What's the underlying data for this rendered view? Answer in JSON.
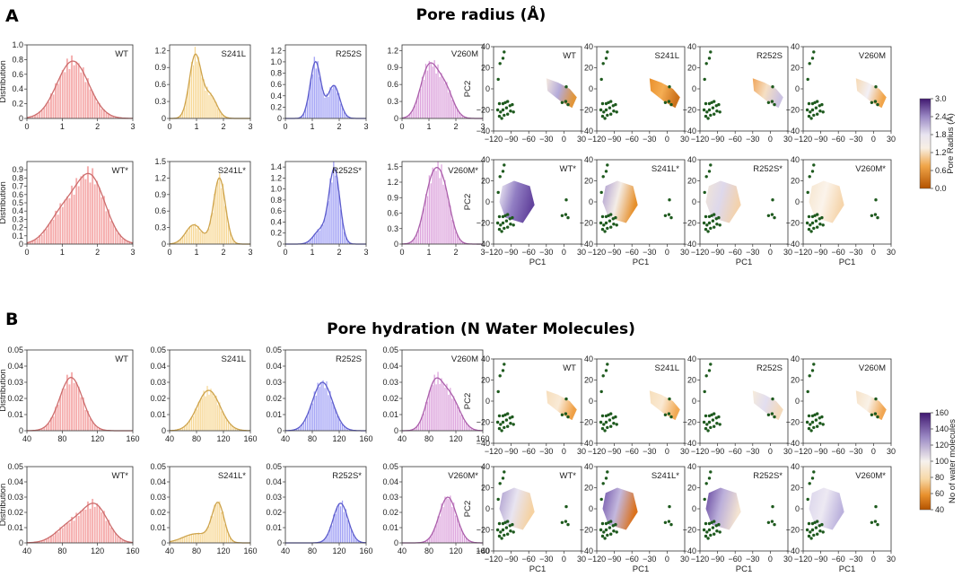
{
  "labels": {
    "panel_a": "A",
    "panel_b": "B",
    "title_a": "Pore radius (Å)",
    "title_b": "Pore hydration (N Water Molecules)",
    "distribution": "Distribution",
    "pc1": "PC1",
    "pc2": "PC2"
  },
  "colors": {
    "WT": "#f08080",
    "S241L": "#f2c15a",
    "R252S": "#6d6df0",
    "V260M": "#c970c9",
    "scatter_points": "#1e5a1e",
    "cmap_low": "#c05a00",
    "cmap_mid": "#f6f1ec",
    "cmap_high": "#4b1a78"
  },
  "chart_data": [
    {
      "panel": "A",
      "type": "bar",
      "kind": "histogram",
      "title": "Pore radius (Å)",
      "ylabel": "Distribution",
      "rows": [
        {
          "xlim": [
            0,
            3
          ],
          "xticks": [
            "0",
            "1",
            "2",
            "3"
          ],
          "subplots": [
            {
              "label": "WT",
              "variant": "WT",
              "ylim": [
                0,
                1.0
              ],
              "yticks": [
                "0",
                "0.2",
                "0.4",
                "0.6",
                "0.8",
                "1.0"
              ],
              "peaks": [
                [
                  1.3,
                  0.78,
                  0.45
                ]
              ]
            },
            {
              "label": "S241L",
              "variant": "S241L",
              "ylim": [
                0,
                1.3
              ],
              "yticks": [
                "0",
                "0.3",
                "0.6",
                "0.9",
                "1.2"
              ],
              "peaks": [
                [
                  0.95,
                  1.1,
                  0.22
                ],
                [
                  1.5,
                  0.4,
                  0.25
                ]
              ]
            },
            {
              "label": "R252S",
              "variant": "R252S",
              "ylim": [
                0,
                1.3
              ],
              "yticks": [
                "0",
                "0.2",
                "0.4",
                "0.6",
                "0.8",
                "1.0",
                "1.2"
              ],
              "peaks": [
                [
                  1.12,
                  1.0,
                  0.2
                ],
                [
                  1.8,
                  0.58,
                  0.22
                ]
              ]
            },
            {
              "label": "V260M",
              "variant": "V260M",
              "ylim": [
                0,
                1.3
              ],
              "yticks": [
                "0",
                "0.3",
                "0.6",
                "0.9",
                "1.2"
              ],
              "peaks": [
                [
                  1.0,
                  0.9,
                  0.32
                ],
                [
                  1.6,
                  0.5,
                  0.3
                ]
              ]
            }
          ]
        },
        {
          "xlim": [
            0,
            3
          ],
          "xticks": [
            "0",
            "1",
            "2",
            "3"
          ],
          "subplots": [
            {
              "label": "WT*",
              "variant": "WT",
              "ylim": [
                0,
                1.0
              ],
              "yticks": [
                "0",
                "0.1",
                "0.2",
                "0.3",
                "0.4",
                "0.5",
                "0.6",
                "0.7",
                "0.8",
                "0.9"
              ],
              "peaks": [
                [
                  1.8,
                  0.8,
                  0.42
                ],
                [
                  1.0,
                  0.35,
                  0.4
                ]
              ]
            },
            {
              "label": "S241L*",
              "variant": "S241L",
              "ylim": [
                0,
                1.5
              ],
              "yticks": [
                "0",
                "0.3",
                "0.6",
                "0.9",
                "1.2",
                "1.5"
              ],
              "peaks": [
                [
                  1.85,
                  1.2,
                  0.22
                ],
                [
                  0.9,
                  0.35,
                  0.3
                ]
              ]
            },
            {
              "label": "R252S*",
              "variant": "R252S",
              "ylim": [
                0,
                1.5
              ],
              "yticks": [
                "0",
                "0.2",
                "0.4",
                "0.6",
                "0.8",
                "1.0",
                "1.2",
                "1.4"
              ],
              "peaks": [
                [
                  1.82,
                  1.35,
                  0.2
                ],
                [
                  1.3,
                  0.25,
                  0.25
                ]
              ]
            },
            {
              "label": "V260M*",
              "variant": "V260M",
              "ylim": [
                0,
                1.6
              ],
              "yticks": [
                "0",
                "0.3",
                "0.6",
                "0.9",
                "1.2",
                "1.5"
              ],
              "peaks": [
                [
                  1.1,
                  1.1,
                  0.3
                ],
                [
                  1.55,
                  0.9,
                  0.28
                ]
              ]
            }
          ]
        }
      ]
    },
    {
      "panel": "B",
      "type": "bar",
      "kind": "histogram",
      "title": "Pore hydration (N Water Molecules)",
      "ylabel": "Distribution",
      "rows": [
        {
          "subplots": [
            {
              "label": "WT",
              "variant": "WT",
              "xlim": [
                40,
                160
              ],
              "xticks": [
                "40",
                "80",
                "120",
                "160"
              ],
              "ylim": [
                0,
                0.05
              ],
              "yticks": [
                "0",
                "0.01",
                "0.02",
                "0.03",
                "0.04",
                "0.05"
              ],
              "peaks": [
                [
                  90,
                  0.033,
                  13
                ]
              ]
            },
            {
              "label": "S241L",
              "variant": "S241L",
              "xlim": [
                40,
                160
              ],
              "xticks": [
                "40",
                "80",
                "120",
                "160"
              ],
              "ylim": [
                0,
                0.05
              ],
              "yticks": [
                "0",
                "0.01",
                "0.02",
                "0.03",
                "0.04",
                "0.05"
              ],
              "peaks": [
                [
                  98,
                  0.025,
                  17
                ]
              ]
            },
            {
              "label": "R252S",
              "variant": "R252S",
              "xlim": [
                40,
                160
              ],
              "xticks": [
                "40",
                "80",
                "120",
                "160"
              ],
              "ylim": [
                0,
                0.05
              ],
              "yticks": [
                "0",
                "0.01",
                "0.02",
                "0.03",
                "0.04",
                "0.05"
              ],
              "peaks": [
                [
                  95,
                  0.03,
                  15
                ]
              ]
            },
            {
              "label": "V260M",
              "variant": "V260M",
              "xlim": [
                40,
                160
              ],
              "xticks": [
                "40",
                "80",
                "120",
                "160"
              ],
              "ylim": [
                0,
                0.05
              ],
              "yticks": [
                "0",
                "0.01",
                "0.02",
                "0.03",
                "0.04",
                "0.05"
              ],
              "peaks": [
                [
                  88,
                  0.027,
                  12
                ],
                [
                  112,
                  0.02,
                  14
                ]
              ]
            }
          ]
        },
        {
          "subplots": [
            {
              "label": "WT*",
              "variant": "WT",
              "xlim": [
                40,
                160
              ],
              "xticks": [
                "40",
                "80",
                "120",
                "160"
              ],
              "ylim": [
                0,
                0.05
              ],
              "yticks": [
                "0",
                "0.01",
                "0.02",
                "0.03",
                "0.04",
                "0.05"
              ],
              "peaks": [
                [
                  118,
                  0.023,
                  14
                ],
                [
                  90,
                  0.012,
                  16
                ]
              ]
            },
            {
              "label": "S241L*",
              "variant": "S241L",
              "xlim": [
                40,
                160
              ],
              "xticks": [
                "40",
                "80",
                "120",
                "160"
              ],
              "ylim": [
                0,
                0.05
              ],
              "yticks": [
                "0",
                "0.01",
                "0.02",
                "0.03",
                "0.04",
                "0.05"
              ],
              "peaks": [
                [
                  112,
                  0.025,
                  9
                ],
                [
                  80,
                  0.006,
                  20
                ]
              ]
            },
            {
              "label": "R252S*",
              "variant": "R252S",
              "xlim": [
                40,
                160
              ],
              "xticks": [
                "40",
                "80",
                "120",
                "160"
              ],
              "ylim": [
                0,
                0.05
              ],
              "yticks": [
                "0",
                "0.01",
                "0.02",
                "0.03",
                "0.04",
                "0.05"
              ],
              "peaks": [
                [
                  122,
                  0.026,
                  11
                ]
              ]
            },
            {
              "label": "V260M*",
              "variant": "V260M",
              "xlim": [
                40,
                160
              ],
              "xticks": [
                "40",
                "80",
                "120",
                "160"
              ],
              "ylim": [
                0,
                0.05
              ],
              "yticks": [
                "0",
                "0.01",
                "0.02",
                "0.03",
                "0.04",
                "0.05"
              ],
              "peaks": [
                [
                  108,
                  0.03,
                  13
                ]
              ]
            }
          ]
        }
      ]
    },
    {
      "panel": "A",
      "type": "scatter",
      "kind": "pca",
      "xlabel": "PC1",
      "ylabel": "PC2",
      "xlim": [
        -120,
        30
      ],
      "ylim": [
        -40,
        40
      ],
      "xticks": [
        "−120",
        "−90",
        "−60",
        "−30",
        "0",
        "30"
      ],
      "yticks": [
        "−40",
        "−20",
        "0",
        "20",
        "40"
      ],
      "colorbar": {
        "label": "Pore Radius (Å)",
        "range": [
          0,
          3.0
        ],
        "ticks": [
          "3.0",
          "2.4",
          "1.8",
          "1.2",
          "0.6",
          "0.0"
        ]
      },
      "panels": [
        "WT",
        "S241L",
        "R252S",
        "V260M",
        "WT*",
        "S241L*",
        "R252S*",
        "V260M*"
      ]
    },
    {
      "panel": "B",
      "type": "scatter",
      "kind": "pca",
      "xlabel": "PC1",
      "ylabel": "PC2",
      "xlim": [
        -120,
        30
      ],
      "ylim": [
        -40,
        40
      ],
      "xticks": [
        "−120",
        "−90",
        "−60",
        "−30",
        "0",
        "30"
      ],
      "yticks": [
        "−40",
        "−20",
        "0",
        "20",
        "40"
      ],
      "colorbar": {
        "label": "No of water molecules",
        "range": [
          40,
          160
        ],
        "ticks": [
          "160",
          "140",
          "120",
          "100",
          "80",
          "60",
          "40"
        ]
      },
      "panels": [
        "WT",
        "S241L",
        "R252S",
        "V260M",
        "WT*",
        "S241L*",
        "R252S*",
        "V260M*"
      ]
    }
  ],
  "scatter_points": [
    [
      -102,
      35
    ],
    [
      -104,
      29
    ],
    [
      -109,
      24
    ],
    [
      -112,
      9
    ],
    [
      -110,
      -14
    ],
    [
      -104,
      -14
    ],
    [
      -100,
      -13
    ],
    [
      -96,
      -12
    ],
    [
      -113,
      -20
    ],
    [
      -108,
      -22
    ],
    [
      -104,
      -20
    ],
    [
      -98,
      -18
    ],
    [
      -92,
      -16
    ],
    [
      -88,
      -15
    ],
    [
      -110,
      -26
    ],
    [
      -106,
      -28
    ],
    [
      -102,
      -25
    ],
    [
      -96,
      -24
    ],
    [
      -91,
      -21
    ],
    [
      -86,
      -22
    ],
    [
      -3,
      -13
    ],
    [
      3,
      -12
    ],
    [
      7,
      -15
    ],
    [
      4,
      2
    ]
  ],
  "clouds": {
    "native": [
      [
        -30,
        10
      ],
      [
        -10,
        6
      ],
      [
        10,
        0
      ],
      [
        22,
        -8
      ],
      [
        14,
        -18
      ],
      [
        -5,
        -12
      ],
      [
        -28,
        -2
      ]
    ],
    "star": [
      [
        -105,
        15
      ],
      [
        -85,
        20
      ],
      [
        -58,
        15
      ],
      [
        -50,
        -3
      ],
      [
        -70,
        -20
      ],
      [
        -100,
        -15
      ],
      [
        -110,
        0
      ]
    ]
  }
}
